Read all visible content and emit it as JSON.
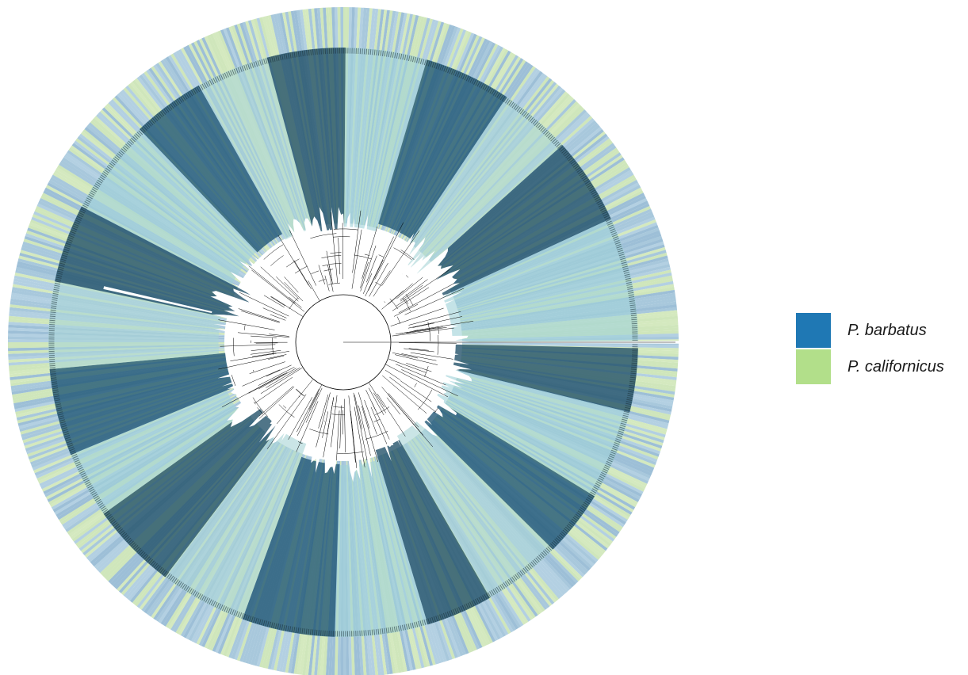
{
  "figure": {
    "type": "circular-phylogenetic-tree",
    "ring_colors": [
      "#a8c8dc",
      "#d4e9bf",
      "#9dbfd7",
      "#cfe6bb",
      "#b3d0e2"
    ],
    "clade_highlight_colors": [
      "#1f4e66",
      "#9fd2d9",
      "#1d5573",
      "#a9d5d7"
    ],
    "branch_color": "#000000"
  },
  "legend": {
    "items": [
      {
        "label": "P. barbatus",
        "color": "#1f78b4"
      },
      {
        "label": "P. californicus",
        "color": "#b2df8a"
      }
    ]
  }
}
